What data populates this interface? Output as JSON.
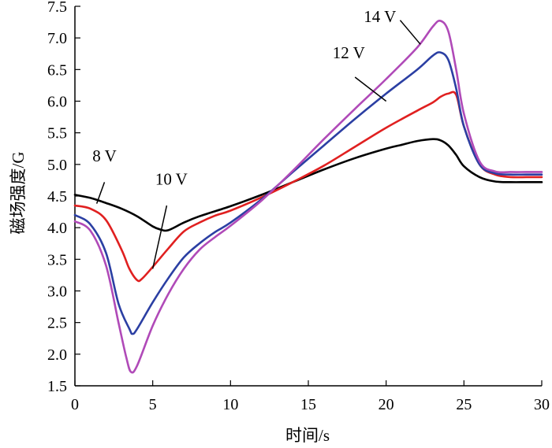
{
  "chart_data": {
    "type": "line",
    "title": "",
    "xlabel": "时间/s",
    "ylabel": "磁场强度/G",
    "xlim": [
      0,
      30
    ],
    "ylim": [
      1.5,
      7.5
    ],
    "grid": false,
    "xticks": [
      0,
      5,
      10,
      15,
      20,
      25,
      30
    ],
    "yticks": [
      "1.5",
      "2.0",
      "2.5",
      "3.0",
      "3.5",
      "4.0",
      "4.5",
      "5.0",
      "5.5",
      "6.0",
      "6.5",
      "7.0",
      "7.5"
    ],
    "series": [
      {
        "name": "8 V",
        "color": "#000000",
        "x": [
          0,
          1,
          2,
          3,
          4,
          5,
          5.5,
          6,
          7,
          8,
          10,
          12,
          14,
          16,
          18,
          20,
          21,
          22,
          23,
          23.5,
          24,
          24.5,
          25,
          26,
          27,
          28,
          29,
          30
        ],
        "y": [
          4.52,
          4.47,
          4.39,
          4.3,
          4.18,
          4.02,
          3.97,
          3.96,
          4.08,
          4.18,
          4.34,
          4.52,
          4.72,
          4.92,
          5.1,
          5.25,
          5.31,
          5.37,
          5.4,
          5.38,
          5.3,
          5.15,
          4.97,
          4.8,
          4.73,
          4.72,
          4.72,
          4.72
        ],
        "label": {
          "text": "8 V",
          "tx": 1.9,
          "ty": 5.05,
          "ax": 1.9,
          "ay": 4.72,
          "bx": 1.4,
          "by": 4.38
        }
      },
      {
        "name": "10 V",
        "color": "#e02020",
        "x": [
          0,
          1,
          2,
          3,
          3.5,
          4,
          4.3,
          5,
          6,
          7,
          8,
          9,
          10,
          12,
          14,
          16,
          18,
          20,
          22,
          23,
          23.5,
          24,
          24.5,
          25,
          26,
          27,
          28,
          29,
          30
        ],
        "y": [
          4.35,
          4.3,
          4.12,
          3.65,
          3.35,
          3.17,
          3.19,
          3.38,
          3.67,
          3.94,
          4.08,
          4.19,
          4.27,
          4.48,
          4.72,
          4.98,
          5.28,
          5.58,
          5.85,
          5.98,
          6.07,
          6.12,
          6.1,
          5.6,
          5.0,
          4.84,
          4.8,
          4.8,
          4.8
        ],
        "label": {
          "text": "10 V",
          "tx": 6.2,
          "ty": 4.68,
          "ax": 5.9,
          "ay": 4.35,
          "bx": 5.0,
          "by": 3.35
        }
      },
      {
        "name": "12 V",
        "color": "#2b3fa3",
        "x": [
          0,
          1,
          2,
          2.8,
          3.5,
          3.7,
          4,
          5,
          6,
          7,
          8,
          9,
          10,
          12,
          14,
          16,
          18,
          20,
          22,
          23,
          23.5,
          24,
          24.5,
          25,
          26,
          27,
          28,
          29,
          30
        ],
        "y": [
          4.2,
          4.05,
          3.6,
          2.8,
          2.4,
          2.32,
          2.4,
          2.82,
          3.2,
          3.53,
          3.75,
          3.93,
          4.08,
          4.45,
          4.88,
          5.3,
          5.72,
          6.12,
          6.5,
          6.72,
          6.77,
          6.65,
          6.2,
          5.6,
          5.0,
          4.86,
          4.84,
          4.84,
          4.84
        ],
        "label": {
          "text": "12 V",
          "tx": 17.6,
          "ty": 6.68,
          "ax": 18.0,
          "ay": 6.38,
          "bx": 20.0,
          "by": 6.0
        }
      },
      {
        "name": "14 V",
        "color": "#b04ab8",
        "x": [
          0,
          1,
          2,
          2.8,
          3.3,
          3.6,
          4,
          5,
          6,
          7,
          8,
          9,
          10,
          12,
          14,
          16,
          18,
          20,
          22,
          23,
          23.5,
          24,
          24.5,
          25,
          26,
          27,
          28,
          29,
          30
        ],
        "y": [
          4.1,
          3.95,
          3.4,
          2.5,
          1.95,
          1.72,
          1.82,
          2.45,
          2.95,
          3.35,
          3.65,
          3.85,
          4.03,
          4.43,
          4.9,
          5.4,
          5.88,
          6.35,
          6.85,
          7.18,
          7.27,
          7.1,
          6.5,
          5.8,
          5.05,
          4.89,
          4.88,
          4.88,
          4.88
        ],
        "label": {
          "text": "14 V",
          "tx": 19.6,
          "ty": 7.25,
          "ax": 20.9,
          "ay": 7.28,
          "bx": 22.2,
          "by": 6.9
        }
      }
    ]
  }
}
